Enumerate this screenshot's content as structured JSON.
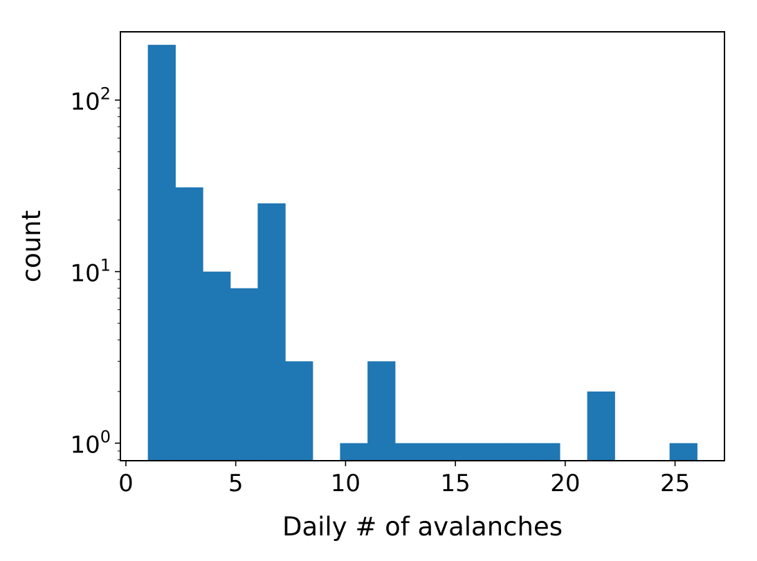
{
  "chart_data": {
    "type": "bar",
    "subtype": "histogram",
    "title": "",
    "xlabel": "Daily # of avalanches",
    "ylabel": "count",
    "yscale": "log",
    "xlim": [
      -0.25,
      27.25
    ],
    "ylim": [
      0.79,
      250
    ],
    "xticks": [
      0,
      5,
      10,
      15,
      20,
      25
    ],
    "yticks": [
      {
        "value": 1,
        "base": "10",
        "exp": "0"
      },
      {
        "value": 10,
        "base": "10",
        "exp": "1"
      },
      {
        "value": 100,
        "base": "10",
        "exp": "2"
      }
    ],
    "bar_color": "#1f77b4",
    "grid": false,
    "bin_edges": [
      1.0,
      2.25,
      3.5,
      4.75,
      6.0,
      7.25,
      8.5,
      9.75,
      11.0,
      12.25,
      13.5,
      14.75,
      16.0,
      17.25,
      18.5,
      19.75,
      21.0,
      22.25,
      23.5,
      24.75,
      26.0
    ],
    "values": [
      210,
      31,
      10,
      8,
      25,
      3,
      0,
      1,
      3,
      1,
      1,
      1,
      1,
      1,
      1,
      0,
      2,
      0,
      0,
      1
    ]
  }
}
